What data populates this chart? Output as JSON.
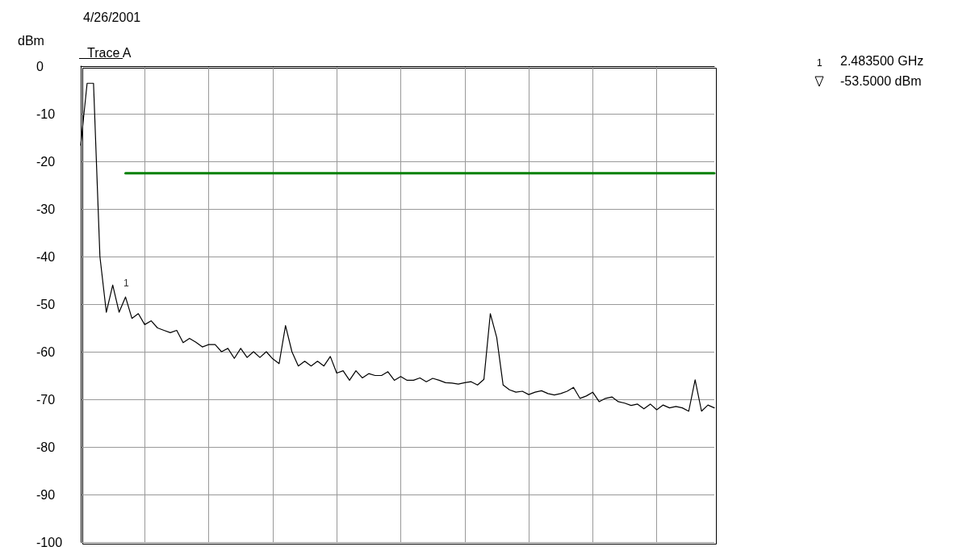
{
  "chart_data": {
    "type": "line",
    "title": "4/26/2001",
    "ylabel": "dBm",
    "categories": [
      null,
      null,
      null,
      null,
      null,
      null,
      null,
      null,
      null,
      null,
      null,
      null,
      null,
      null,
      null,
      null,
      null,
      null,
      null,
      null,
      null,
      null,
      null,
      null,
      null,
      null,
      null,
      null,
      null,
      null,
      null,
      null,
      null,
      null,
      null,
      null,
      null,
      null,
      null,
      null,
      null,
      null,
      null,
      null,
      null,
      null,
      null,
      null,
      null,
      null,
      null,
      null,
      null,
      null,
      null,
      null,
      null,
      null,
      null,
      null,
      null,
      null,
      null,
      null,
      null,
      null,
      null,
      null,
      null,
      null,
      null,
      null,
      null,
      null,
      null,
      null,
      null,
      null,
      null,
      null,
      null,
      null,
      null,
      null,
      null,
      null,
      null,
      null,
      null,
      null,
      null,
      null,
      null,
      null,
      null,
      null,
      null,
      null,
      null,
      null
    ],
    "series": [
      {
        "name": "Trace A",
        "color": "#000000",
        "values": [
          -16.6,
          -3.6,
          -3.6,
          -40,
          -51.7,
          -46,
          -51.7,
          -48.5,
          -53,
          -52,
          -54.3,
          -53.5,
          -55,
          -55.5,
          -56,
          -55.5,
          -58.1,
          -57.2,
          -58,
          -59,
          -58.5,
          -58.5,
          -60,
          -59.3,
          -61.4,
          -59.3,
          -61.2,
          -60,
          -61.2,
          -60,
          -61.5,
          -62.5,
          -54.5,
          -60,
          -63,
          -62,
          -63,
          -62,
          -63,
          -61,
          -64.5,
          -64,
          -66,
          -64,
          -65.5,
          -64.6,
          -65,
          -65,
          -64.2,
          -66,
          -65.2,
          -66,
          -66,
          -65.5,
          -66.3,
          -65.6,
          -66,
          -66.5,
          -66.6,
          -66.8,
          -66.5,
          -66.3,
          -67,
          -65.8,
          -52,
          -57,
          -67,
          -68,
          -68.5,
          -68.3,
          -69,
          -68.5,
          -68.2,
          -68.8,
          -69.1,
          -68.8,
          -68.3,
          -67.5,
          -69.8,
          -69.3,
          -68.5,
          -70.5,
          -69.8,
          -69.5,
          -70.5,
          -70.8,
          -71.3,
          -71,
          -72,
          -71,
          -72.2,
          -71.2,
          -71.8,
          -71.5,
          -71.8,
          -72.5,
          -65.9,
          -72.5,
          -71.2,
          -71.8
        ]
      },
      {
        "color": "#008000",
        "values": [
          null,
          null,
          null,
          null,
          null,
          null,
          null,
          -22.5,
          -22.5,
          -22.5,
          -22.5,
          -22.5,
          -22.5,
          -22.5,
          -22.5,
          -22.5,
          -22.5,
          -22.5,
          -22.5,
          -22.5,
          -22.5,
          -22.5,
          -22.5,
          -22.5,
          -22.5,
          -22.5,
          -22.5,
          -22.5,
          -22.5,
          -22.5,
          -22.5,
          -22.5,
          -22.5,
          -22.5,
          -22.5,
          -22.5,
          -22.5,
          -22.5,
          -22.5,
          -22.5,
          -22.5,
          -22.5,
          -22.5,
          -22.5,
          -22.5,
          -22.5,
          -22.5,
          -22.5,
          -22.5,
          -22.5,
          -22.5,
          -22.5,
          -22.5,
          -22.5,
          -22.5,
          -22.5,
          -22.5,
          -22.5,
          -22.5,
          -22.5,
          -22.5,
          -22.5,
          -22.5,
          -22.5,
          -22.5,
          -22.5,
          -22.5,
          -22.5,
          -22.5,
          -22.5,
          -22.5,
          -22.5,
          -22.5,
          -22.5,
          -22.5,
          -22.5,
          -22.5,
          -22.5,
          -22.5,
          -22.5,
          -22.5,
          -22.5,
          -22.5,
          -22.5,
          -22.5,
          -22.5,
          -22.5,
          -22.5,
          -22.5,
          -22.5,
          -22.5,
          -22.5,
          -22.5,
          -22.5,
          -22.5,
          -22.5,
          -22.5,
          -22.5,
          -22.5,
          -22.5
        ]
      }
    ],
    "ylim": [
      -100,
      0
    ],
    "yticks": [
      -100,
      -90,
      -80,
      -70,
      -60,
      -50,
      -40,
      -30,
      -20,
      -10,
      0
    ],
    "grid": true,
    "legend": "top left",
    "marker": "none",
    "line_style": "solid",
    "annotations": [
      "1",
      "1",
      "2.483500 GHz",
      "-53.5000 dBm"
    ]
  }
}
